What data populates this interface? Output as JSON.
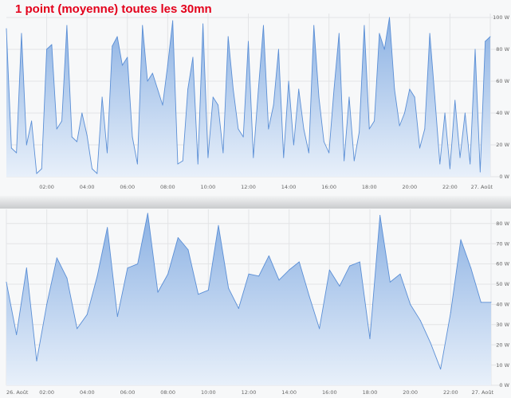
{
  "page_title": "1 point (moyenne) toutes les 30mn",
  "colors": {
    "line": "#5b8fd6",
    "fill_top": "#8bb1e3",
    "fill_bottom": "#e8f0fa",
    "grid": "#e3e4e6",
    "tick_text": "#666666",
    "title": "#e3001b"
  },
  "chart_data": [
    {
      "type": "area",
      "title": "",
      "xlabel": "",
      "ylabel": "",
      "x_ticks": [
        "02:00",
        "04:00",
        "06:00",
        "08:00",
        "10:00",
        "12:00",
        "14:00",
        "16:00",
        "18:00",
        "20:00",
        "22:00",
        "27. Août"
      ],
      "x_tick_hours": [
        2,
        4,
        6,
        8,
        10,
        12,
        14,
        16,
        18,
        20,
        22,
        24
      ],
      "x_range_hours": [
        0,
        24
      ],
      "y_ticks": [
        0,
        20,
        40,
        60,
        80,
        100
      ],
      "y_tick_labels": [
        "0 W",
        "20 W",
        "40 W",
        "60 W",
        "80 W",
        "100 W"
      ],
      "ylim": [
        0,
        100
      ],
      "grid": true,
      "series": [
        {
          "x_hours": [
            0,
            0.25,
            0.5,
            0.75,
            1.0,
            1.25,
            1.5,
            1.75,
            2.0,
            2.25,
            2.5,
            2.75,
            3.0,
            3.25,
            3.5,
            3.75,
            4.0,
            4.25,
            4.5,
            4.75,
            5.0,
            5.25,
            5.5,
            5.75,
            6.0,
            6.25,
            6.5,
            6.75,
            7.0,
            7.25,
            7.5,
            7.75,
            8.0,
            8.25,
            8.5,
            8.75,
            9.0,
            9.25,
            9.5,
            9.75,
            10.0,
            10.25,
            10.5,
            10.75,
            11.0,
            11.25,
            11.5,
            11.75,
            12.0,
            12.25,
            12.5,
            12.75,
            13.0,
            13.25,
            13.5,
            13.75,
            14.0,
            14.25,
            14.5,
            14.75,
            15.0,
            15.25,
            15.5,
            15.75,
            16.0,
            16.25,
            16.5,
            16.75,
            17.0,
            17.25,
            17.5,
            17.75,
            18.0,
            18.25,
            18.5,
            18.75,
            19.0,
            19.25,
            19.5,
            19.75,
            20.0,
            20.25,
            20.5,
            20.75,
            21.0,
            21.25,
            21.5,
            21.75,
            22.0,
            22.25,
            22.5,
            22.75,
            23.0,
            23.25,
            23.5,
            23.75,
            24.0
          ],
          "y": [
            93,
            18,
            15,
            90,
            20,
            35,
            2,
            5,
            80,
            83,
            30,
            35,
            95,
            25,
            22,
            40,
            26,
            5,
            2,
            50,
            15,
            82,
            88,
            70,
            75,
            25,
            8,
            95,
            60,
            65,
            55,
            45,
            70,
            98,
            8,
            10,
            55,
            75,
            8,
            96,
            12,
            50,
            45,
            15,
            88,
            55,
            30,
            25,
            85,
            12,
            55,
            95,
            30,
            45,
            80,
            12,
            60,
            20,
            55,
            30,
            15,
            95,
            50,
            22,
            15,
            55,
            90,
            10,
            50,
            10,
            28,
            95,
            30,
            35,
            90,
            80,
            100,
            55,
            32,
            40,
            55,
            50,
            18,
            30,
            90,
            50,
            8,
            40,
            5,
            48,
            12,
            40,
            8,
            80,
            3,
            85,
            88
          ]
        }
      ]
    },
    {
      "type": "area",
      "title": "",
      "xlabel": "",
      "ylabel": "",
      "x_ticks": [
        "26. Août",
        "02:00",
        "04:00",
        "06:00",
        "08:00",
        "10:00",
        "12:00",
        "14:00",
        "16:00",
        "18:00",
        "20:00",
        "22:00",
        "27. Août"
      ],
      "x_tick_hours": [
        0,
        2,
        4,
        6,
        8,
        10,
        12,
        14,
        16,
        18,
        20,
        22,
        24
      ],
      "x_range_hours": [
        0,
        24
      ],
      "y_ticks": [
        0,
        10,
        20,
        30,
        40,
        50,
        60,
        70,
        80
      ],
      "y_tick_labels": [
        "0 W",
        "10 W",
        "20 W",
        "30 W",
        "40 W",
        "50 W",
        "60 W",
        "70 W",
        "80 W"
      ],
      "ylim": [
        0,
        85
      ],
      "grid": true,
      "series": [
        {
          "x_hours": [
            0,
            0.5,
            1.0,
            1.5,
            2.0,
            2.5,
            3.0,
            3.5,
            4.0,
            4.5,
            5.0,
            5.5,
            6.0,
            6.5,
            7.0,
            7.5,
            8.0,
            8.5,
            9.0,
            9.5,
            10.0,
            10.5,
            11.0,
            11.5,
            12.0,
            12.5,
            13.0,
            13.5,
            14.0,
            14.5,
            15.0,
            15.5,
            16.0,
            16.5,
            17.0,
            17.5,
            18.0,
            18.5,
            19.0,
            19.5,
            20.0,
            20.5,
            21.0,
            21.5,
            22.0,
            22.5,
            23.0,
            23.5,
            24.0
          ],
          "y": [
            51,
            25,
            58,
            12,
            40,
            63,
            53,
            28,
            35,
            54,
            78,
            34,
            58,
            60,
            85,
            46,
            55,
            73,
            67,
            45,
            47,
            79,
            48,
            38,
            55,
            54,
            64,
            52,
            57,
            61,
            44,
            28,
            57,
            49,
            59,
            61,
            23,
            84,
            51,
            55,
            40,
            32,
            21,
            8,
            36,
            72,
            58,
            41,
            41
          ]
        }
      ]
    }
  ]
}
